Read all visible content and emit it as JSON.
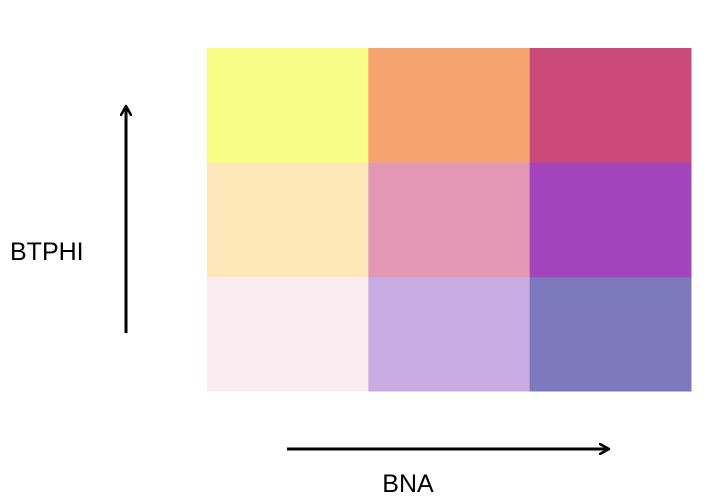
{
  "chart_data": {
    "type": "heatmap",
    "subtype": "bivariate-legend",
    "xlabel": "BNA",
    "ylabel": "BTPHI",
    "x_classes": 3,
    "y_classes": 3,
    "cells": [
      {
        "x": 1,
        "y": 1,
        "color": "#fbecf2"
      },
      {
        "x": 2,
        "y": 1,
        "color": "#c9ace2"
      },
      {
        "x": 3,
        "y": 1,
        "color": "#7b78bb"
      },
      {
        "x": 1,
        "y": 2,
        "color": "#fee8ba"
      },
      {
        "x": 2,
        "y": 2,
        "color": "#e497b3"
      },
      {
        "x": 3,
        "y": 2,
        "color": "#a444bc"
      },
      {
        "x": 1,
        "y": 3,
        "color": "#f6fc84"
      },
      {
        "x": 2,
        "y": 3,
        "color": "#f5a36f"
      },
      {
        "x": 3,
        "y": 3,
        "color": "#ca4979"
      }
    ],
    "arrow_color": "#000000"
  }
}
